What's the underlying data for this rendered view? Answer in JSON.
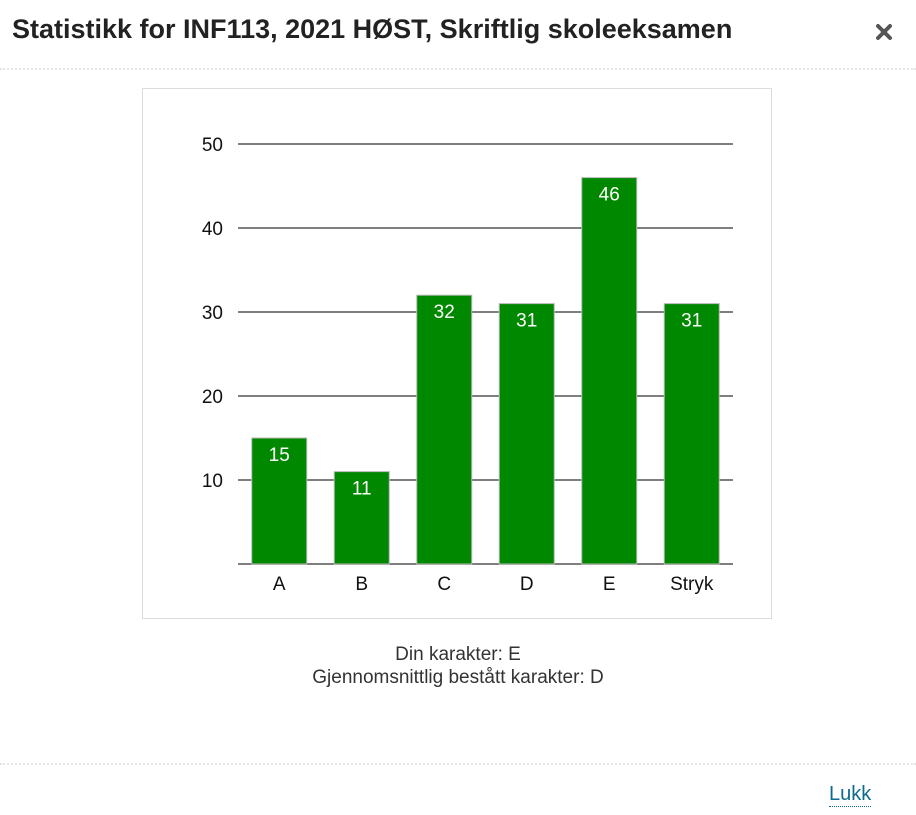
{
  "dialog": {
    "title": "Statistikk for INF113, 2021 HØST, Skriftlig skoleeksamen",
    "close_icon": "close-icon",
    "close_link_label": "Lukk"
  },
  "info": {
    "your_grade": "Din karakter: E",
    "avg_grade": "Gjennomsnittlig bestått karakter: D"
  },
  "colors": {
    "bar": "#008800",
    "bar_edge": "#b8b8b8",
    "grid": "#555555",
    "link": "#0e6a8f"
  },
  "chart_data": {
    "type": "bar",
    "categories": [
      "A",
      "B",
      "C",
      "D",
      "E",
      "Stryk"
    ],
    "values": [
      15,
      11,
      32,
      31,
      46,
      31
    ],
    "yticks": [
      10,
      20,
      30,
      40,
      50
    ],
    "ylim": [
      0,
      50
    ],
    "grid": true,
    "legend": "none"
  }
}
